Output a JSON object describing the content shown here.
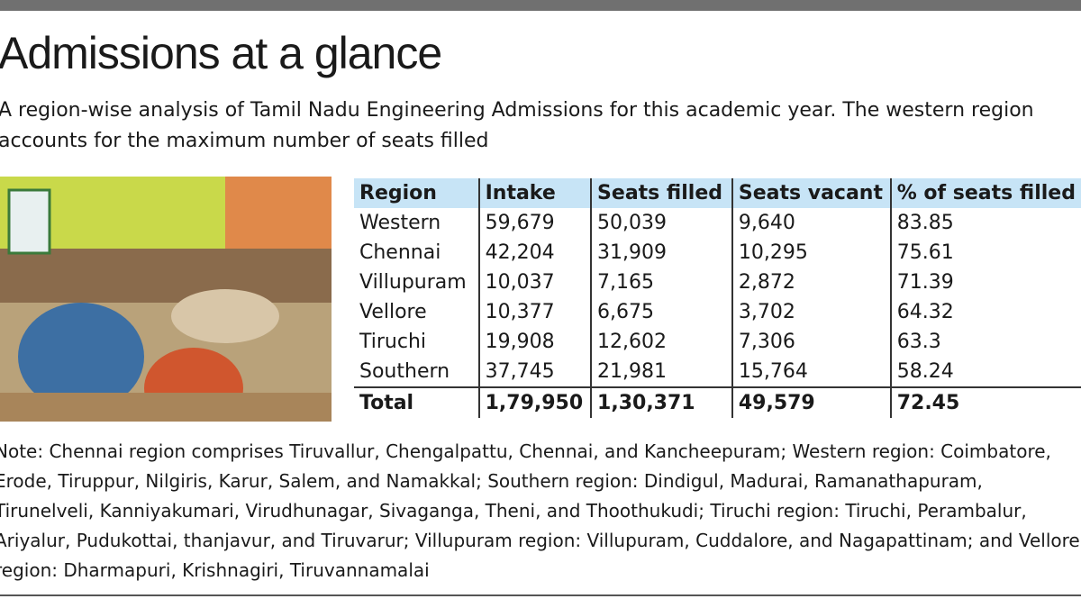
{
  "header": {
    "title": "Admissions at a glance",
    "subtitle": "A region-wise analysis of Tamil Nadu Engineering Admissions for this academic year. The western region accounts for the maximum number of seats filled"
  },
  "table": {
    "columns": [
      "Region",
      "Intake",
      "Seats filled",
      "Seats vacant",
      "% of seats filled"
    ],
    "rows": [
      [
        "Western",
        "59,679",
        "50,039",
        "9,640",
        "83.85"
      ],
      [
        "Chennai",
        "42,204",
        "31,909",
        "10,295",
        "75.61"
      ],
      [
        "Villupuram",
        "10,037",
        "7,165",
        "2,872",
        "71.39"
      ],
      [
        "Vellore",
        "10,377",
        "6,675",
        "3,702",
        "64.32"
      ],
      [
        "Tiruchi",
        "19,908",
        "12,602",
        "7,306",
        "63.3"
      ],
      [
        "Southern",
        "37,745",
        "21,981",
        "15,764",
        "58.24"
      ]
    ],
    "total": [
      "Total",
      "1,79,950",
      "1,30,371",
      "49,579",
      "72.45"
    ]
  },
  "note": "Note: Chennai region comprises Tiruvallur, Chengalpattu, Chennai, and Kancheepuram; Western region: Coimbatore, Erode, Tiruppur, Nilgiris, Karur, Salem, and Namakkal; Southern region: Dindigul, Madurai, Ramanathapuram, Tirunelveli, Kanniyakumari, Virudhunagar, Sivaganga, Theni, and Thoothukudi; Tiruchi region: Tiruchi, Perambalur, Ariyalur, Pudukottai, thanjavur, and Tiruvarur; Villupuram region: Villupuram, Cuddalore, and Nagapattinam; and Vellore region: Dharmapuri, Krishnagiri, Tiruvannamalai"
}
